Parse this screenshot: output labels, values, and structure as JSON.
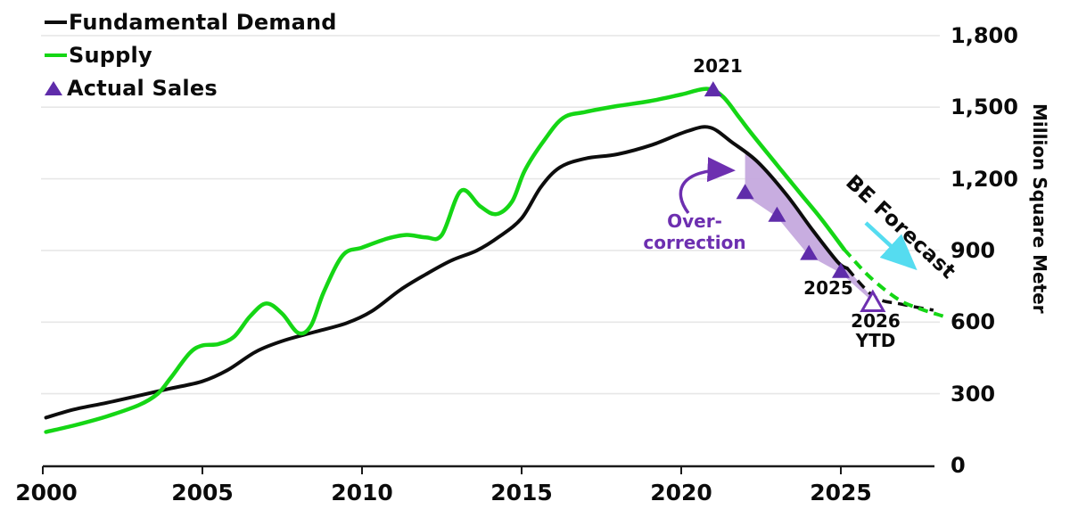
{
  "legend": {
    "items": [
      {
        "label": "Fundamental Demand",
        "marker": "line",
        "color": "#0d0d0d"
      },
      {
        "label": "Supply",
        "marker": "line",
        "color": "#15d615"
      },
      {
        "label": "Actual Sales",
        "marker": "triangle",
        "color": "#5f2caa"
      }
    ]
  },
  "axes": {
    "y_label": "Million Square Meter",
    "y_ticks": [
      "1,800",
      "1,500",
      "1,200",
      "900",
      "600",
      "300",
      "0"
    ],
    "x_ticks": [
      "2000",
      "2005",
      "2010",
      "2015",
      "2020",
      "2025"
    ]
  },
  "annotations": {
    "peak_year": "2021",
    "label_2025": "2025",
    "label_2026": "2026",
    "label_ytd": "YTD",
    "overcorrection_line1": "Over-",
    "overcorrection_line2": "correction",
    "be_forecast": "BE Forecast"
  },
  "colors": {
    "demand": "#0d0d0d",
    "supply": "#15d615",
    "sales": "#5f2caa",
    "band": "#c5a9de",
    "purple_arrow": "#6d2fb0",
    "cyan_arrow": "#55dcf0",
    "grid": "#e7e7e7",
    "axis": "#1a1a1a"
  },
  "chart_data": {
    "type": "line",
    "ylabel": "Million Square Meter",
    "x_tick_years": [
      2000,
      2005,
      2010,
      2015,
      2020,
      2025
    ],
    "y_tick_values": [
      0,
      300,
      600,
      900,
      1200,
      1500,
      1800
    ],
    "ylim": [
      0,
      1800
    ],
    "xlim": [
      2000,
      2028.5
    ],
    "grid": "horizontal",
    "legend_position": "top-left",
    "series": [
      {
        "name": "Fundamental Demand",
        "style": "solid",
        "points": [
          [
            2000.1,
            200
          ],
          [
            2001,
            235
          ],
          [
            2002,
            262
          ],
          [
            2003,
            292
          ],
          [
            2004,
            322
          ],
          [
            2005,
            352
          ],
          [
            2005.8,
            400
          ],
          [
            2006.7,
            478
          ],
          [
            2007.6,
            525
          ],
          [
            2008.5,
            558
          ],
          [
            2009.5,
            595
          ],
          [
            2010.3,
            645
          ],
          [
            2011.2,
            735
          ],
          [
            2012,
            800
          ],
          [
            2012.8,
            858
          ],
          [
            2013.6,
            900
          ],
          [
            2014.3,
            958
          ],
          [
            2015,
            1035
          ],
          [
            2015.6,
            1165
          ],
          [
            2016.2,
            1248
          ],
          [
            2017,
            1285
          ],
          [
            2018,
            1303
          ],
          [
            2019.1,
            1343
          ],
          [
            2020.2,
            1400
          ],
          [
            2020.9,
            1415
          ],
          [
            2021.6,
            1352
          ],
          [
            2022.4,
            1270
          ],
          [
            2023.3,
            1133
          ],
          [
            2024.1,
            988
          ],
          [
            2024.9,
            852
          ],
          [
            2025.2,
            825
          ]
        ]
      },
      {
        "name": "Fundamental Demand forecast",
        "style": "dashed",
        "points": [
          [
            2025.2,
            825
          ],
          [
            2026.05,
            706
          ],
          [
            2026.9,
            675
          ],
          [
            2027.9,
            650
          ]
        ]
      },
      {
        "name": "Supply",
        "style": "solid",
        "points": [
          [
            2000.1,
            140
          ],
          [
            2001,
            168
          ],
          [
            2002,
            205
          ],
          [
            2003,
            252
          ],
          [
            2003.6,
            300
          ],
          [
            2004,
            365
          ],
          [
            2004.6,
            470
          ],
          [
            2005,
            502
          ],
          [
            2005.5,
            508
          ],
          [
            2006,
            540
          ],
          [
            2006.5,
            625
          ],
          [
            2007,
            678
          ],
          [
            2007.5,
            635
          ],
          [
            2008,
            555
          ],
          [
            2008.4,
            585
          ],
          [
            2008.8,
            725
          ],
          [
            2009.4,
            880
          ],
          [
            2010,
            912
          ],
          [
            2010.8,
            950
          ],
          [
            2011.4,
            965
          ],
          [
            2012,
            955
          ],
          [
            2012.5,
            965
          ],
          [
            2013.1,
            1150
          ],
          [
            2013.7,
            1085
          ],
          [
            2014.2,
            1052
          ],
          [
            2014.7,
            1105
          ],
          [
            2015.1,
            1235
          ],
          [
            2015.7,
            1360
          ],
          [
            2016.3,
            1455
          ],
          [
            2017,
            1480
          ],
          [
            2018,
            1505
          ],
          [
            2019,
            1525
          ],
          [
            2020,
            1553
          ],
          [
            2020.8,
            1577
          ],
          [
            2021.3,
            1545
          ],
          [
            2021.8,
            1460
          ],
          [
            2022.2,
            1390
          ],
          [
            2023,
            1258
          ],
          [
            2023.8,
            1128
          ],
          [
            2024.4,
            1030
          ],
          [
            2025.1,
            905
          ]
        ]
      },
      {
        "name": "Supply forecast (BE Forecast)",
        "style": "dashed",
        "points": [
          [
            2025.1,
            905
          ],
          [
            2025.9,
            790
          ],
          [
            2026.8,
            695
          ],
          [
            2027.5,
            655
          ],
          [
            2028.2,
            625
          ]
        ]
      },
      {
        "name": "Actual Sales",
        "style": "triangle-markers",
        "points": [
          [
            2021,
            1575
          ],
          [
            2022,
            1145
          ],
          [
            2023,
            1050
          ],
          [
            2024,
            890
          ],
          [
            2025,
            815
          ]
        ],
        "open_point": [
          2026,
          685
        ],
        "open_point_label": "2026 YTD"
      }
    ],
    "overcorrection_band": {
      "top": [
        [
          2022,
          1310
        ],
        [
          2022.4,
          1270
        ],
        [
          2023.3,
          1133
        ],
        [
          2024.1,
          988
        ],
        [
          2024.9,
          852
        ],
        [
          2025.2,
          825
        ],
        [
          2026,
          700
        ]
      ],
      "bottom": [
        [
          2026,
          685
        ],
        [
          2025,
          805
        ],
        [
          2024,
          878
        ],
        [
          2023,
          1040
        ],
        [
          2022,
          1130
        ]
      ]
    }
  }
}
